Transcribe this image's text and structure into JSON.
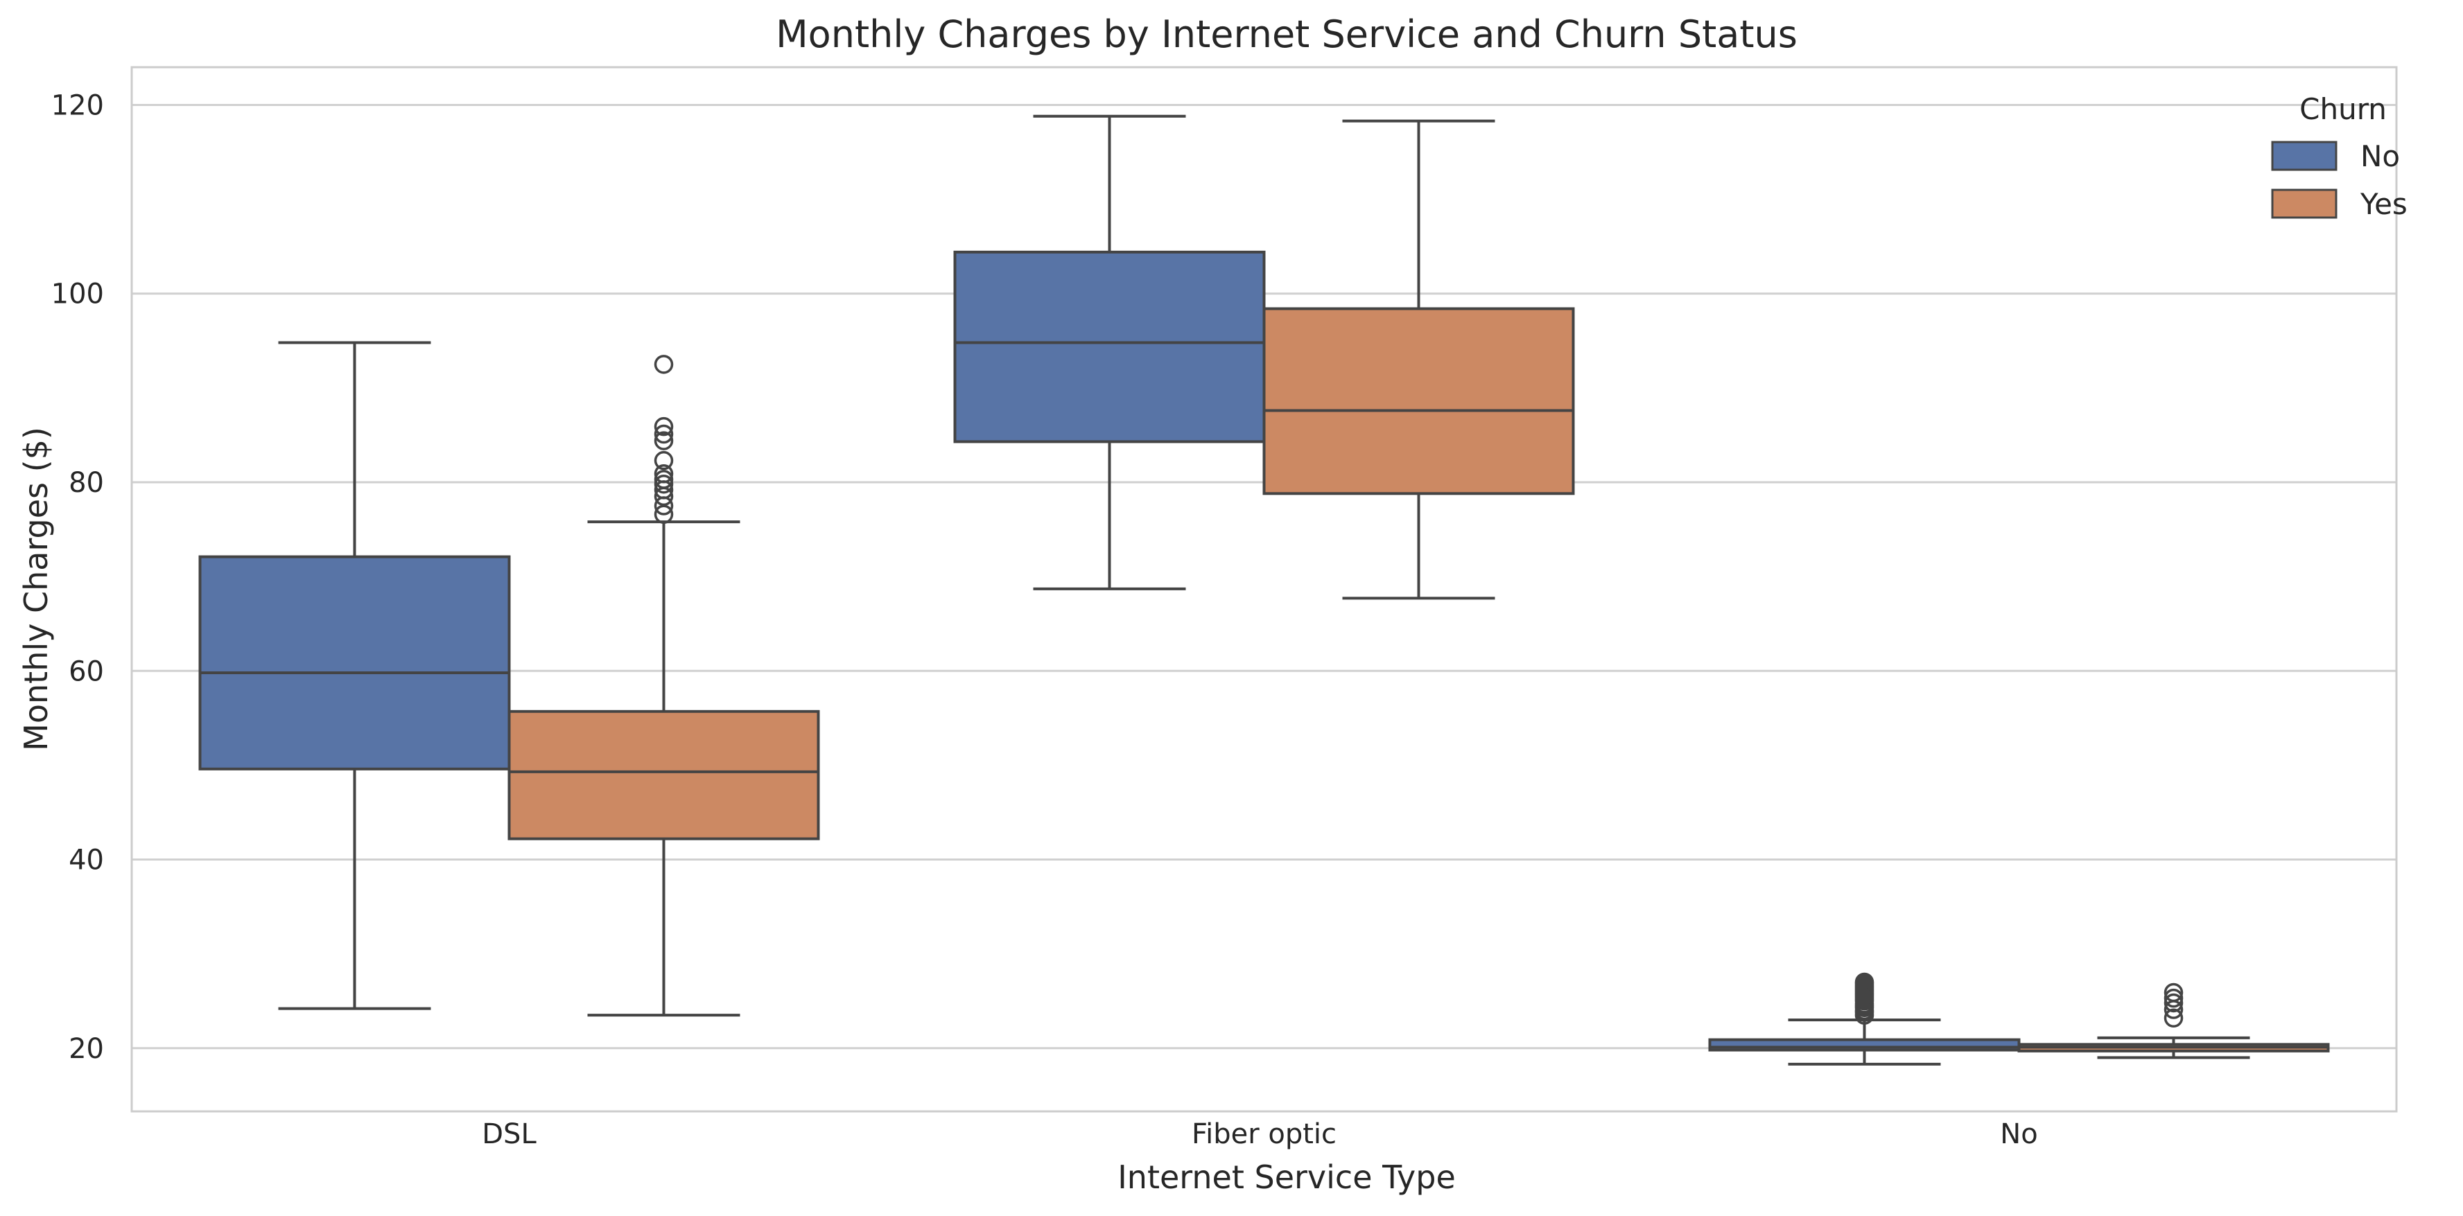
{
  "chart_data": {
    "type": "box",
    "title": "Monthly Charges by Internet Service and Churn Status",
    "xlabel": "Internet Service Type",
    "ylabel": "Monthly Charges ($)",
    "ylim": [
      13.3,
      124
    ],
    "yticks": [
      20,
      40,
      60,
      80,
      100,
      120
    ],
    "grid": true,
    "categories": [
      "DSL",
      "Fiber optic",
      "No"
    ],
    "legend": {
      "title": "Churn",
      "placement": "top-right"
    },
    "series": [
      {
        "name": "No",
        "color": "#5874a6",
        "boxes": [
          {
            "whislo": 24.2,
            "q1": 49.6,
            "med": 59.8,
            "q3": 72.1,
            "whishi": 94.8,
            "fliers": []
          },
          {
            "whislo": 68.7,
            "q1": 84.3,
            "med": 94.8,
            "q3": 104.4,
            "whishi": 118.8,
            "fliers": []
          },
          {
            "whislo": 18.3,
            "q1": 19.8,
            "med": 20.1,
            "q3": 20.9,
            "whishi": 23.0,
            "fliers": [
              23.5,
              23.8,
              24.0,
              24.3,
              24.5,
              24.7,
              25.0,
              25.2,
              25.4,
              25.6,
              25.8,
              26.0,
              26.2,
              26.4,
              26.6,
              26.8,
              27.0
            ]
          }
        ]
      },
      {
        "name": "Yes",
        "color": "#cc8963",
        "boxes": [
          {
            "whislo": 23.5,
            "q1": 42.2,
            "med": 49.3,
            "q3": 55.7,
            "whishi": 75.8,
            "fliers": [
              76.6,
              77.5,
              78.5,
              79.2,
              79.8,
              80.3,
              80.9,
              82.3,
              84.4,
              85.1,
              85.9,
              92.5
            ]
          },
          {
            "whislo": 67.7,
            "q1": 78.8,
            "med": 87.6,
            "q3": 98.4,
            "whishi": 118.3,
            "fliers": []
          },
          {
            "whislo": 19.0,
            "q1": 19.7,
            "med": 20.1,
            "q3": 20.4,
            "whishi": 21.1,
            "fliers": [
              23.2,
              24.1,
              24.8,
              25.3,
              25.9
            ]
          }
        ]
      }
    ]
  }
}
